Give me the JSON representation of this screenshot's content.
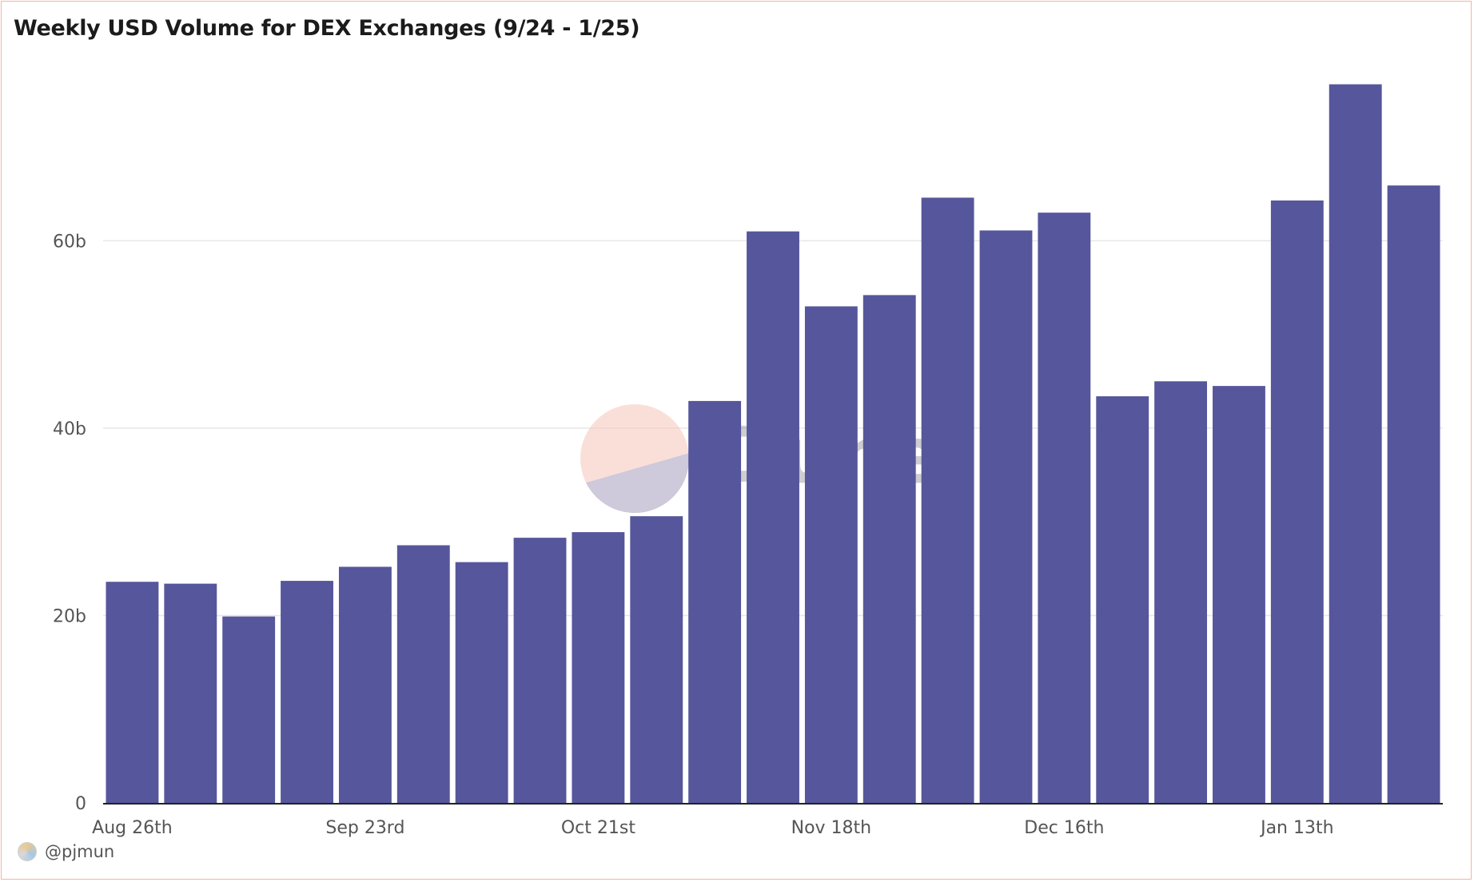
{
  "title": "Weekly USD Volume for DEX Exchanges (9/24 - 1/25)",
  "author": "@pjmun",
  "watermark": "Dune",
  "colors": {
    "bar": "#55569b",
    "grid": "#e6e6e6",
    "axis": "#222222",
    "tick": "#555555",
    "watermark_top": "#f7c9c0",
    "watermark_bottom": "#c6c6da",
    "watermark_text": "#3b3b4f"
  },
  "chart_data": {
    "type": "bar",
    "title": "Weekly USD Volume for DEX Exchanges (9/24 - 1/25)",
    "xlabel": "",
    "ylabel": "",
    "x_tick_labels": [
      "Aug 26th",
      "Sep 23rd",
      "Oct 21st",
      "Nov 18th",
      "Dec 16th",
      "Jan 13th"
    ],
    "x_tick_every": 4,
    "y_ticks": [
      0,
      20,
      40,
      60
    ],
    "y_tick_labels": [
      "0",
      "20b",
      "40b",
      "60b"
    ],
    "ylim": [
      0,
      78
    ],
    "grid": true,
    "legend": "none",
    "values": [
      23.6,
      23.4,
      19.9,
      23.7,
      25.2,
      27.5,
      25.7,
      28.3,
      28.9,
      30.6,
      42.9,
      61.0,
      53.0,
      54.2,
      64.6,
      61.1,
      63.0,
      43.4,
      45.0,
      44.5,
      64.3,
      76.7,
      65.9
    ]
  }
}
